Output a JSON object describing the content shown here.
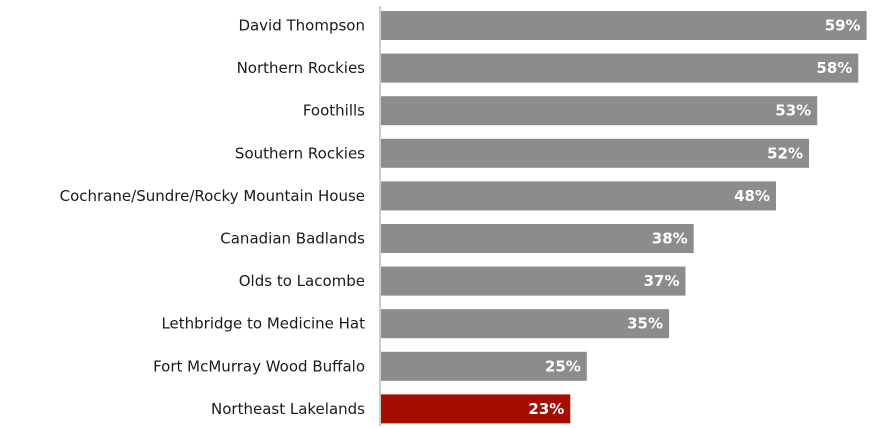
{
  "chart_data": {
    "type": "bar",
    "orientation": "horizontal",
    "categories": [
      "David Thompson",
      "Northern Rockies",
      "Foothills",
      "Southern Rockies",
      "Cochrane/Sundre/Rocky Mountain House",
      "Canadian Badlands",
      "Olds to Lacombe",
      "Lethbridge to Medicine Hat",
      "Fort McMurray Wood Buffalo",
      "Northeast Lakelands"
    ],
    "values": [
      59,
      58,
      53,
      52,
      48,
      38,
      37,
      35,
      25,
      23
    ],
    "value_labels": [
      "59%",
      "58%",
      "53%",
      "52%",
      "48%",
      "38%",
      "37%",
      "35%",
      "25%",
      "23%"
    ],
    "unit": "%",
    "xlim": [
      0,
      60
    ],
    "grid": false,
    "legend": "none",
    "colors": {
      "default_bar": "#8c8c8c",
      "highlight_bar": "#a50d02",
      "axis": "#9a9a9a",
      "label_text": "#1a1a1a",
      "value_text": "#ffffff"
    },
    "highlight_category": "Northeast Lakelands"
  }
}
